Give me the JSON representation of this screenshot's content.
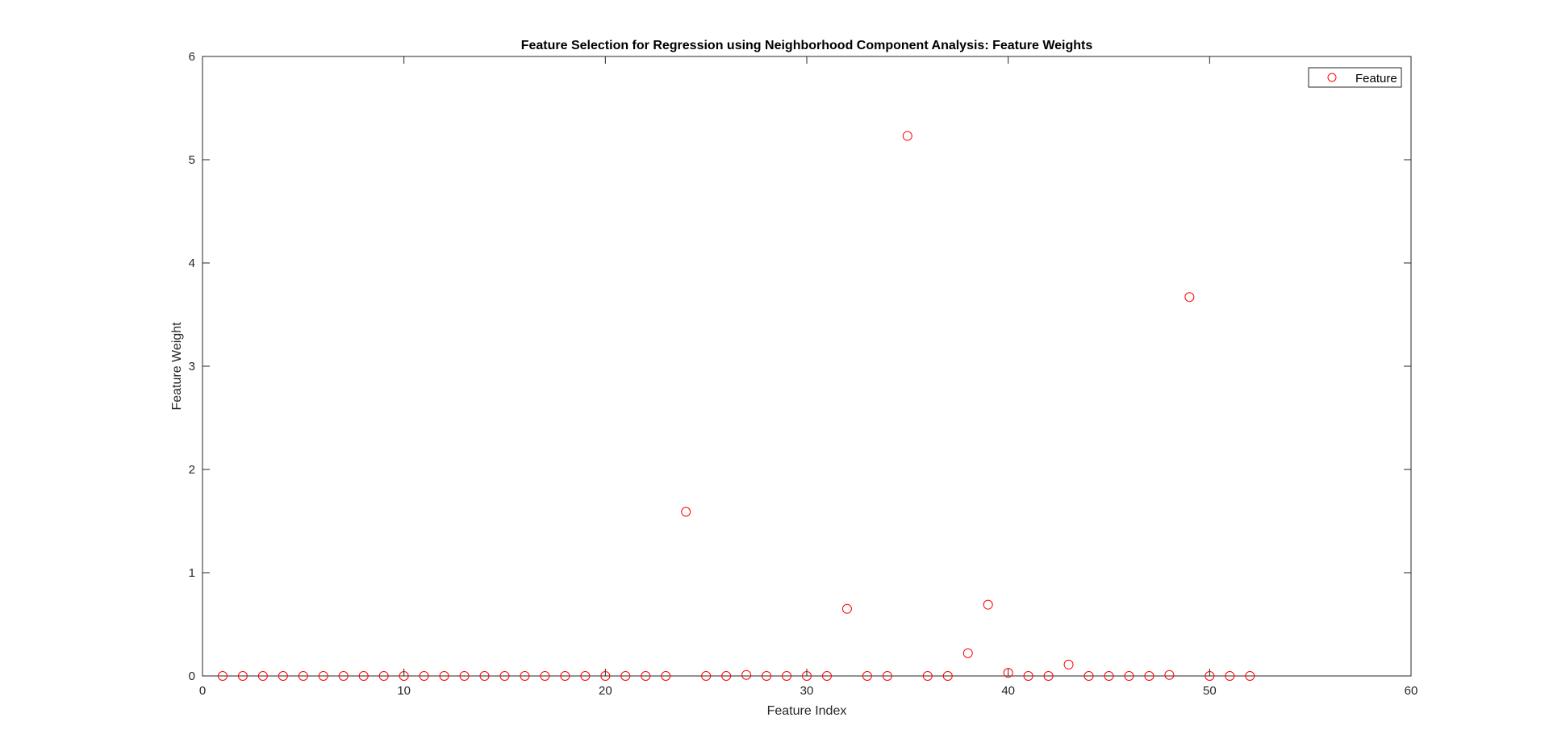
{
  "chart_data": {
    "type": "scatter",
    "title": "Feature Selection for Regression using Neighborhood Component Analysis: Feature Weights",
    "xlabel": "Feature Index",
    "ylabel": "Feature Weight",
    "xlim": [
      0,
      60
    ],
    "ylim": [
      0,
      6
    ],
    "xticks": [
      0,
      10,
      20,
      30,
      40,
      50,
      60
    ],
    "yticks": [
      0,
      1,
      2,
      3,
      4,
      5,
      6
    ],
    "grid": false,
    "legend": {
      "position": "top-right",
      "entries": [
        "Feature"
      ]
    },
    "marker": "circle",
    "color": "#ff0000",
    "series": [
      {
        "name": "Feature",
        "points": [
          [
            1,
            0
          ],
          [
            2,
            0
          ],
          [
            3,
            0
          ],
          [
            4,
            0
          ],
          [
            5,
            0
          ],
          [
            6,
            0
          ],
          [
            7,
            0
          ],
          [
            8,
            0
          ],
          [
            9,
            0
          ],
          [
            10,
            0
          ],
          [
            11,
            0
          ],
          [
            12,
            0
          ],
          [
            13,
            0
          ],
          [
            14,
            0
          ],
          [
            15,
            0
          ],
          [
            16,
            0
          ],
          [
            17,
            0
          ],
          [
            18,
            0
          ],
          [
            19,
            0
          ],
          [
            20,
            0
          ],
          [
            21,
            0
          ],
          [
            22,
            0
          ],
          [
            23,
            0
          ],
          [
            24,
            1.59
          ],
          [
            25,
            0
          ],
          [
            26,
            0
          ],
          [
            27,
            0.01
          ],
          [
            28,
            0
          ],
          [
            29,
            0
          ],
          [
            30,
            0
          ],
          [
            31,
            0
          ],
          [
            32,
            0.65
          ],
          [
            33,
            0
          ],
          [
            34,
            0
          ],
          [
            35,
            5.23
          ],
          [
            36,
            0
          ],
          [
            37,
            0
          ],
          [
            38,
            0.22
          ],
          [
            39,
            0.69
          ],
          [
            40,
            0.03
          ],
          [
            41,
            0
          ],
          [
            42,
            0
          ],
          [
            43,
            0.11
          ],
          [
            44,
            0
          ],
          [
            45,
            0
          ],
          [
            46,
            0
          ],
          [
            47,
            0
          ],
          [
            48,
            0.01
          ],
          [
            49,
            3.67
          ],
          [
            50,
            0
          ],
          [
            51,
            0
          ],
          [
            52,
            0
          ]
        ]
      }
    ]
  }
}
